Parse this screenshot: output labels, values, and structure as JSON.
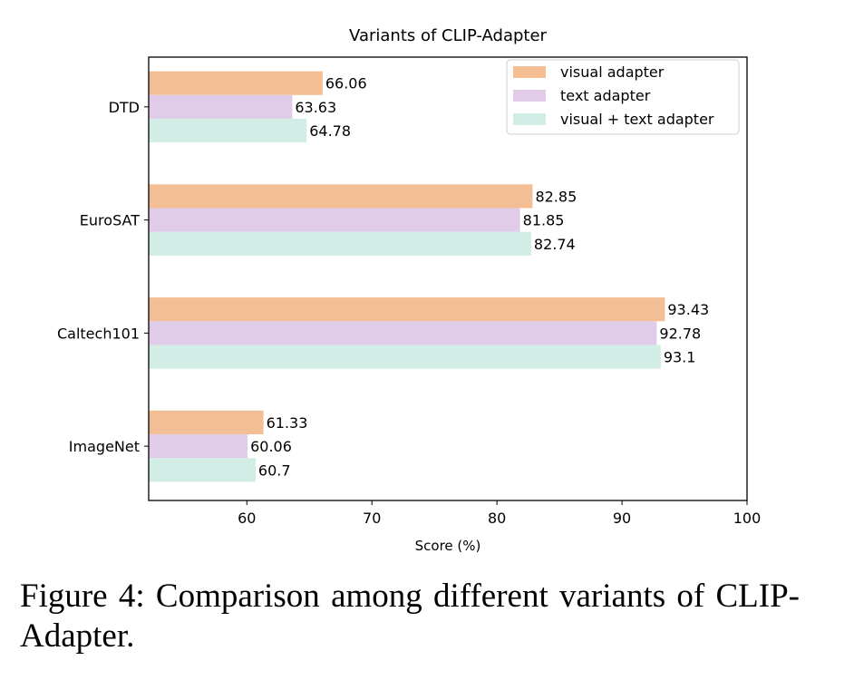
{
  "chart_data": {
    "type": "bar",
    "orientation": "horizontal",
    "title": "Variants of CLIP-Adapter",
    "xlabel": "Score (%)",
    "ylabel": "",
    "categories": [
      "DTD",
      "EuroSAT",
      "Caltech101",
      "ImageNet"
    ],
    "xlim": [
      52.15,
      100
    ],
    "xticks": [
      60,
      70,
      80,
      90,
      100
    ],
    "grid": false,
    "legend_position": "top-right",
    "series": [
      {
        "name": "visual adapter",
        "color": "#f4be94",
        "values": [
          66.06,
          82.85,
          93.43,
          61.33
        ],
        "labels": [
          "66.06",
          "82.85",
          "93.43",
          "61.33"
        ]
      },
      {
        "name": "text adapter",
        "color": "#e0cce8",
        "values": [
          63.63,
          81.85,
          92.78,
          60.06
        ],
        "labels": [
          "63.63",
          "81.85",
          "92.78",
          "60.06"
        ]
      },
      {
        "name": "visual + text adapter",
        "color": "#d2ece6",
        "values": [
          64.78,
          82.74,
          93.1,
          60.7
        ],
        "labels": [
          "64.78",
          "82.74",
          "93.1",
          "60.7"
        ]
      }
    ]
  },
  "caption": "Figure 4:  Comparison among different variants of CLIP-Adapter."
}
